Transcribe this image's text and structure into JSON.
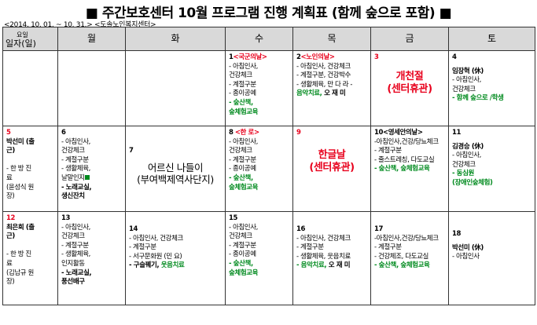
{
  "title": "■ 주간보호센터 10월 프로그램 진행 계획표 (함께 숲으로 포함) ■",
  "subtitle": "<2014. 10. 01. ~ 10. 31.> <도솔노인복지센터>",
  "header": {
    "col0_top": "요일",
    "col0_bottom": "일자(일)",
    "days": [
      "월",
      "화",
      "수",
      "목",
      "금",
      "토"
    ]
  },
  "rows": [
    [
      {
        "day": "",
        "lines": []
      },
      {
        "day": "",
        "lines": []
      },
      {
        "day": "",
        "lines": []
      },
      {
        "day": "1",
        "tag": "<국군의날>",
        "lines": [
          "- 아침인사,",
          "건강체크",
          "- 계절구분",
          "- 종이공예"
        ],
        "green": [
          "- 숲산책,",
          "숲체험교육"
        ]
      },
      {
        "day": "2",
        "tag": "<노인의날>",
        "lines": [
          "- 아침인사, 건강체크",
          "- 계절구분, 건강박수",
          "- 생활체육, 만 다 라 -"
        ],
        "green": [
          "음악치료,"
        ],
        "tail": " 오 재 미"
      },
      {
        "day": "3",
        "big_red": [
          "개천절",
          "(센터휴관)"
        ]
      },
      {
        "day": "4",
        "name": "임장혁 (休)",
        "lines": [
          "- 아침인사,",
          "건강체크"
        ],
        "green": [
          "- 함께 숲으로 /학생"
        ]
      }
    ],
    [
      {
        "day": "5",
        "lines": [
          "박선미 (출",
          "근)",
          "",
          "- 한 방 진",
          "료",
          "(윤성식 원",
          "장)"
        ]
      },
      {
        "day": "6",
        "lines": [
          "- 아침인사,",
          "건강체크",
          "- 계절구분",
          "- 생활체육,",
          "날말인지"
        ],
        "bold": [
          "- 노래교실,",
          "생신잔치"
        ]
      },
      {
        "day": "7",
        "center": [
          "어르신 나들이",
          "(부여백제역사단지)"
        ]
      },
      {
        "day": "8",
        "tag": "<한 로>",
        "lines": [
          "- 아침인사,",
          "건강체크",
          "- 계절구분",
          "- 종이공예"
        ],
        "green": [
          "- 숲산책,",
          "숲체험교육"
        ]
      },
      {
        "day": "9",
        "big_red": [
          "한글날",
          "(센터휴관)"
        ]
      },
      {
        "day": "10",
        "tag": "<영세안의날>",
        "lines": [
          "-아침인사,건강/당뇨체크",
          "- 계절구분",
          "- 줄스트레칭, 다도교실"
        ],
        "green": [
          "- 숲산책, 숲체험교육"
        ]
      },
      {
        "day": "11",
        "name": "김경승 (休)",
        "lines": [
          "- 아침인사,",
          "건강체크"
        ],
        "green": [
          "- 동심원",
          "(장애인숲체험)"
        ]
      }
    ],
    [
      {
        "day": "12",
        "lines": [
          "최은희 (출",
          "근)",
          "",
          "- 한 방 진",
          "료",
          "(김남규 원",
          "장)"
        ]
      },
      {
        "day": "13",
        "lines": [
          "- 아침인사,",
          "건강체크",
          "- 계절구분",
          "- 생활체육,",
          "인지활동"
        ],
        "bold": [
          "- 노래교실,",
          "풍선배구"
        ]
      },
      {
        "day": "14",
        "lines": [
          "- 아침인사, 건강체크",
          "- 계절구분",
          "- 서구문화원 (민 요)"
        ],
        "tail_bold": "- 구슬꿰기,",
        "tail_green": " 웃음치료"
      },
      {
        "day": "15",
        "lines": [
          "- 아침인사,",
          "건강체크",
          "- 계절구분",
          "- 종이공예"
        ],
        "green": [
          "- 숲산책,",
          "숲체험교육"
        ]
      },
      {
        "day": "16",
        "lines": [
          "- 아침인사, 건강체크",
          "- 계절구분",
          "- 생활체육, 웃음치료"
        ],
        "green": [
          "- 음악치료,"
        ],
        "tail": " 오 재 미"
      },
      {
        "day": "17",
        "lines": [
          "-아침인사,건강/당뇨체크",
          "- 계절구분",
          "- 건강체조, 다도교실"
        ],
        "green": [
          "- 숲산책, 숲체험교육"
        ]
      },
      {
        "day": "18",
        "name": "박선미 (休)",
        "lines": [
          "- 아침인사"
        ]
      }
    ]
  ]
}
